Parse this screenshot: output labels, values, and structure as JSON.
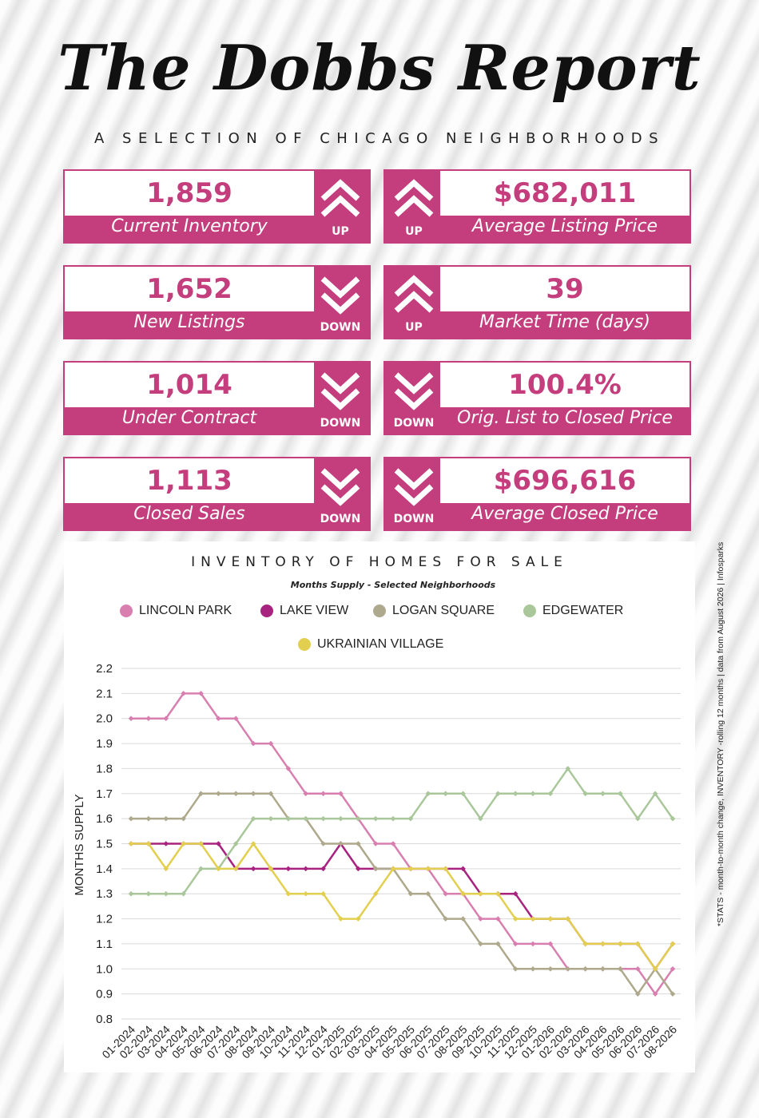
{
  "header": {
    "title": "The Dobbs Report",
    "subtitle": "A SELECTION OF CHICAGO NEIGHBORHOODS"
  },
  "stats": [
    {
      "value": "1,859",
      "label": "Current Inventory",
      "direction": "UP"
    },
    {
      "value": "$682,011",
      "label": "Average Listing Price",
      "direction": "UP"
    },
    {
      "value": "1,652",
      "label": "New Listings",
      "direction": "DOWN"
    },
    {
      "value": "39",
      "label": "Market Time (days)",
      "direction": "UP"
    },
    {
      "value": "1,014",
      "label": "Under Contract",
      "direction": "DOWN"
    },
    {
      "value": "100.4%",
      "label": "Orig. List to Closed Price",
      "direction": "DOWN"
    },
    {
      "value": "1,113",
      "label": "Closed Sales",
      "direction": "DOWN"
    },
    {
      "value": "$696,616",
      "label": "Average Closed Price",
      "direction": "DOWN"
    }
  ],
  "side_note": "*STATS - month-to-month change, INVENTORY -rolling 12 months | data from August 2026 | Infosparks",
  "colors": {
    "brand": "#c43d7c",
    "lincoln_park": "#d97fb0",
    "lake_view": "#a8237f",
    "logan_square": "#aea98c",
    "edgewater": "#a9c79a",
    "ukrainian_village": "#e3cf4f"
  },
  "chart_data": {
    "type": "line",
    "title": "INVENTORY OF HOMES FOR SALE",
    "subtitle": "Months Supply - Selected Neighborhoods",
    "ylabel": "MONTHS SUPPLY",
    "xlabel": "",
    "ylim": [
      0.8,
      2.2
    ],
    "yticks": [
      "2.2",
      "2.1",
      "2.0",
      "1.9",
      "1.8",
      "1.7",
      "1.6",
      "1.5",
      "1.4",
      "1.3",
      "1.2",
      "1.1",
      "1.0",
      "0.9",
      "0.8"
    ],
    "grid": true,
    "legend_position": "top",
    "categories": [
      "01-2024",
      "02-2024",
      "03-2024",
      "04-2024",
      "05-2024",
      "06-2024",
      "07-2024",
      "08-2024",
      "09-2024",
      "10-2024",
      "11-2024",
      "12-2024",
      "01-2025",
      "02-2025",
      "03-2025",
      "04-2025",
      "05-2025",
      "06-2025",
      "07-2025",
      "08-2025",
      "09-2025",
      "10-2025",
      "11-2025",
      "12-2025",
      "01-2026",
      "02-2026",
      "03-2026",
      "04-2026",
      "05-2026",
      "06-2026",
      "07-2026",
      "08-2026"
    ],
    "series": [
      {
        "name": "LINCOLN PARK",
        "color": "#d97fb0",
        "values": [
          2.0,
          2.0,
          2.0,
          2.1,
          2.1,
          2.0,
          2.0,
          1.9,
          1.9,
          1.8,
          1.7,
          1.7,
          1.7,
          1.6,
          1.5,
          1.5,
          1.4,
          1.4,
          1.3,
          1.3,
          1.2,
          1.2,
          1.1,
          1.1,
          1.1,
          1.0,
          1.0,
          1.0,
          1.0,
          1.0,
          0.9,
          1.0
        ]
      },
      {
        "name": "LAKE VIEW",
        "color": "#a8237f",
        "values": [
          1.5,
          1.5,
          1.5,
          1.5,
          1.5,
          1.5,
          1.4,
          1.4,
          1.4,
          1.4,
          1.4,
          1.4,
          1.5,
          1.4,
          1.4,
          1.4,
          1.4,
          1.4,
          1.4,
          1.4,
          1.3,
          1.3,
          1.3,
          1.2,
          1.2,
          1.2,
          1.1,
          1.1,
          1.1,
          1.1,
          1.0,
          1.1
        ]
      },
      {
        "name": "LOGAN SQUARE",
        "color": "#aea98c",
        "values": [
          1.6,
          1.6,
          1.6,
          1.6,
          1.7,
          1.7,
          1.7,
          1.7,
          1.7,
          1.6,
          1.6,
          1.5,
          1.5,
          1.5,
          1.4,
          1.4,
          1.3,
          1.3,
          1.2,
          1.2,
          1.1,
          1.1,
          1.0,
          1.0,
          1.0,
          1.0,
          1.0,
          1.0,
          1.0,
          0.9,
          1.0,
          0.9
        ]
      },
      {
        "name": "EDGEWATER",
        "color": "#a9c79a",
        "values": [
          1.3,
          1.3,
          1.3,
          1.3,
          1.4,
          1.4,
          1.5,
          1.6,
          1.6,
          1.6,
          1.6,
          1.6,
          1.6,
          1.6,
          1.6,
          1.6,
          1.6,
          1.7,
          1.7,
          1.7,
          1.6,
          1.7,
          1.7,
          1.7,
          1.7,
          1.8,
          1.7,
          1.7,
          1.7,
          1.6,
          1.7,
          1.6
        ]
      },
      {
        "name": "UKRAINIAN VILLAGE",
        "color": "#e3cf4f",
        "values": [
          1.5,
          1.5,
          1.4,
          1.5,
          1.5,
          1.4,
          1.4,
          1.5,
          1.4,
          1.3,
          1.3,
          1.3,
          1.2,
          1.2,
          1.3,
          1.4,
          1.4,
          1.4,
          1.4,
          1.3,
          1.3,
          1.3,
          1.2,
          1.2,
          1.2,
          1.2,
          1.1,
          1.1,
          1.1,
          1.1,
          1.0,
          1.1
        ]
      }
    ]
  }
}
